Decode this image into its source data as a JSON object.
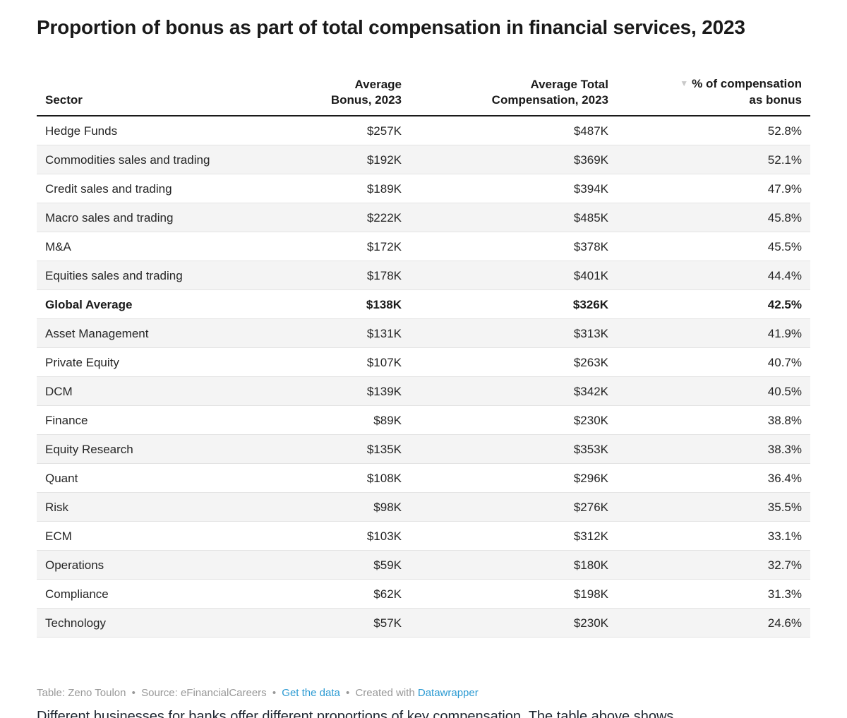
{
  "title": "Proportion of bonus as part of total compensation in financial services, 2023",
  "sort_icon": "▼",
  "table": {
    "headers": {
      "sector": {
        "line1": "Sector"
      },
      "bonus": {
        "line1": "Average",
        "line2": "Bonus, 2023"
      },
      "total": {
        "line1": "Average Total",
        "line2": "Compensation, 2023"
      },
      "pct": {
        "line1": "% of compensation",
        "line2": "as bonus"
      }
    },
    "rows": [
      {
        "sector": "Hedge Funds",
        "bonus": "$257K",
        "total": "$487K",
        "pct": "52.8%",
        "bold": false
      },
      {
        "sector": "Commodities sales and trading",
        "bonus": "$192K",
        "total": "$369K",
        "pct": "52.1%",
        "bold": false
      },
      {
        "sector": "Credit sales and trading",
        "bonus": "$189K",
        "total": "$394K",
        "pct": "47.9%",
        "bold": false
      },
      {
        "sector": "Macro sales and trading",
        "bonus": "$222K",
        "total": "$485K",
        "pct": "45.8%",
        "bold": false
      },
      {
        "sector": "M&A",
        "bonus": "$172K",
        "total": "$378K",
        "pct": "45.5%",
        "bold": false
      },
      {
        "sector": "Equities sales and trading",
        "bonus": "$178K",
        "total": "$401K",
        "pct": "44.4%",
        "bold": false
      },
      {
        "sector": "Global Average",
        "bonus": "$138K",
        "total": "$326K",
        "pct": "42.5%",
        "bold": true
      },
      {
        "sector": "Asset Management",
        "bonus": "$131K",
        "total": "$313K",
        "pct": "41.9%",
        "bold": false
      },
      {
        "sector": "Private Equity",
        "bonus": "$107K",
        "total": "$263K",
        "pct": "40.7%",
        "bold": false
      },
      {
        "sector": "DCM",
        "bonus": "$139K",
        "total": "$342K",
        "pct": "40.5%",
        "bold": false
      },
      {
        "sector": "Finance",
        "bonus": "$89K",
        "total": "$230K",
        "pct": "38.8%",
        "bold": false
      },
      {
        "sector": "Equity Research",
        "bonus": "$135K",
        "total": "$353K",
        "pct": "38.3%",
        "bold": false
      },
      {
        "sector": "Quant",
        "bonus": "$108K",
        "total": "$296K",
        "pct": "36.4%",
        "bold": false
      },
      {
        "sector": "Risk",
        "bonus": "$98K",
        "total": "$276K",
        "pct": "35.5%",
        "bold": false
      },
      {
        "sector": "ECM",
        "bonus": "$103K",
        "total": "$312K",
        "pct": "33.1%",
        "bold": false
      },
      {
        "sector": "Operations",
        "bonus": "$59K",
        "total": "$180K",
        "pct": "32.7%",
        "bold": false
      },
      {
        "sector": "Compliance",
        "bonus": "$62K",
        "total": "$198K",
        "pct": "31.3%",
        "bold": false
      },
      {
        "sector": "Technology",
        "bonus": "$57K",
        "total": "$230K",
        "pct": "24.6%",
        "bold": false
      }
    ]
  },
  "footer": {
    "table_credit": "Table: Zeno Toulon",
    "source": "Source: eFinancialCareers",
    "get_data_link": "Get the data",
    "created_with": "Created with",
    "datawrapper_link": "Datawrapper",
    "separator": "•"
  },
  "partial_paragraph": "Different businesses for banks offer different proportions of key compensation. The table above shows",
  "colors": {
    "title": "#1a1a1a",
    "header_border": "#1a1a1a",
    "row_stripe": "#f4f4f4",
    "row_divider": "#e3e3e3",
    "body_text": "#262626",
    "footer_text": "#989898",
    "link": "#2b9ad2",
    "sort_arrow": "#c9c9c9"
  },
  "chart_data": {
    "type": "table",
    "title": "Proportion of bonus as part of total compensation in financial services, 2023",
    "columns": [
      "Sector",
      "Average Bonus, 2023",
      "Average Total Compensation, 2023",
      "% of compensation as bonus"
    ],
    "rows": [
      [
        "Hedge Funds",
        257,
        487,
        52.8
      ],
      [
        "Commodities sales and trading",
        192,
        369,
        52.1
      ],
      [
        "Credit sales and trading",
        189,
        394,
        47.9
      ],
      [
        "Macro sales and trading",
        222,
        485,
        45.8
      ],
      [
        "M&A",
        172,
        378,
        45.5
      ],
      [
        "Equities sales and trading",
        178,
        401,
        44.4
      ],
      [
        "Global Average",
        138,
        326,
        42.5
      ],
      [
        "Asset Management",
        131,
        313,
        41.9
      ],
      [
        "Private Equity",
        107,
        263,
        40.7
      ],
      [
        "DCM",
        139,
        342,
        40.5
      ],
      [
        "Finance",
        89,
        230,
        38.8
      ],
      [
        "Equity Research",
        135,
        353,
        38.3
      ],
      [
        "Quant",
        108,
        296,
        36.4
      ],
      [
        "Risk",
        98,
        276,
        35.5
      ],
      [
        "ECM",
        103,
        312,
        33.1
      ],
      [
        "Operations",
        59,
        180,
        32.7
      ],
      [
        "Compliance",
        62,
        198,
        31.3
      ],
      [
        "Technology",
        57,
        230,
        24.6
      ]
    ],
    "units": {
      "Average Bonus, 2023": "$K",
      "Average Total Compensation, 2023": "$K",
      "% of compensation as bonus": "%"
    },
    "sorted_by": "% of compensation as bonus",
    "sort_order": "descending",
    "highlighted_row": "Global Average"
  }
}
